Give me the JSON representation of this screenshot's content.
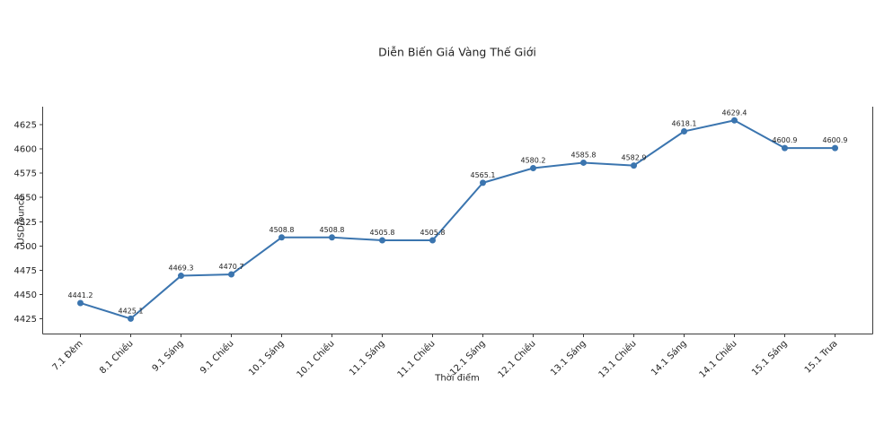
{
  "figure": {
    "background": "#ffffff"
  },
  "chart_data": {
    "type": "line",
    "title": "Diễn Biến Giá Vàng Thế Giới",
    "xlabel": "Thời điểm",
    "ylabel": "USD/ounce",
    "categories": [
      "7.1 Đêm",
      "8.1 Chiều",
      "9.1 Sáng",
      "9.1 Chiều",
      "10.1 Sáng",
      "10.1 Chiều",
      "11.1 Sáng",
      "11.1 Chiều",
      "12.1 Sáng",
      "12.1 Chiều",
      "13.1 Sáng",
      "13.1 Chiều",
      "14.1 Sáng",
      "14.1 Chiều",
      "15.1 Sáng",
      "15.1 Trưa"
    ],
    "values": [
      4441.2,
      4425.1,
      4469.3,
      4470.7,
      4508.8,
      4508.8,
      4505.8,
      4505.8,
      4565.1,
      4580.2,
      4585.8,
      4582.9,
      4618.1,
      4629.4,
      4600.9,
      4600.9
    ],
    "point_labels": [
      "4441.2",
      "4425.1",
      "4469.3",
      "4470.7",
      "4508.8",
      "4508.8",
      "4505.8",
      "4505.8",
      "4565.1",
      "4580.2",
      "4585.8",
      "4582.9",
      "4618.1",
      "4629.4",
      "4600.9",
      "4600.9"
    ],
    "yticks": [
      4425,
      4450,
      4475,
      4500,
      4525,
      4550,
      4575,
      4600,
      4625
    ],
    "ylim": [
      4409.3,
      4643.5
    ],
    "grid": false,
    "legend": null,
    "marker": "circle",
    "line_color": "#3b75af",
    "text_color": "#1f1f1f",
    "axis_color": "#3c3c3c"
  }
}
